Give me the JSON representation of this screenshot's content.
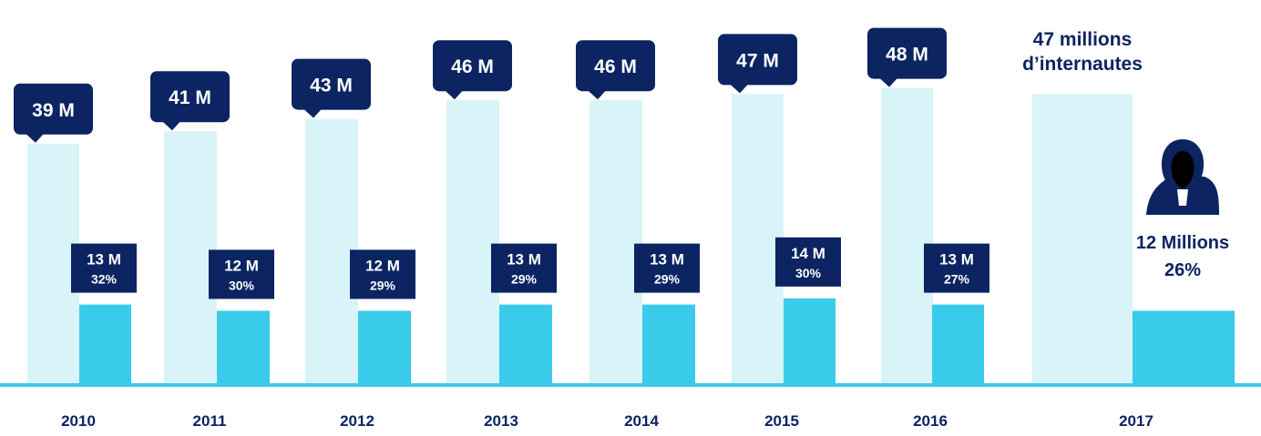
{
  "chart_data": {
    "type": "bar",
    "categories": [
      "2010",
      "2011",
      "2012",
      "2013",
      "2014",
      "2015",
      "2016",
      "2017"
    ],
    "series": [
      {
        "values": [
          39,
          41,
          43,
          46,
          46,
          47,
          48,
          47
        ],
        "labels": [
          "39 M",
          "41 M",
          "43 M",
          "46 M",
          "46 M",
          "47 M",
          "48 M",
          ""
        ]
      },
      {
        "values": [
          13,
          12,
          12,
          13,
          13,
          14,
          13,
          12
        ],
        "labels": [
          "13 M",
          "12 M",
          "12 M",
          "13 M",
          "13 M",
          "14 M",
          "13 M",
          "12 Millions"
        ],
        "percents": [
          "32%",
          "30%",
          "29%",
          "29%",
          "29%",
          "30%",
          "27%",
          "26%"
        ]
      }
    ],
    "annotations": {
      "total_2017_line1": "47 millions",
      "total_2017_line2": "d’internautes"
    },
    "colors": {
      "total_bar": "#d9f4f9",
      "subset_bar": "#39cbe9",
      "label_bg": "#0c2461",
      "label_text": "#ffffff",
      "axis_text": "#0c2461",
      "baseline": "#39cbe9"
    },
    "icon": "hooded-person-icon",
    "grid": false,
    "legend": "none"
  }
}
